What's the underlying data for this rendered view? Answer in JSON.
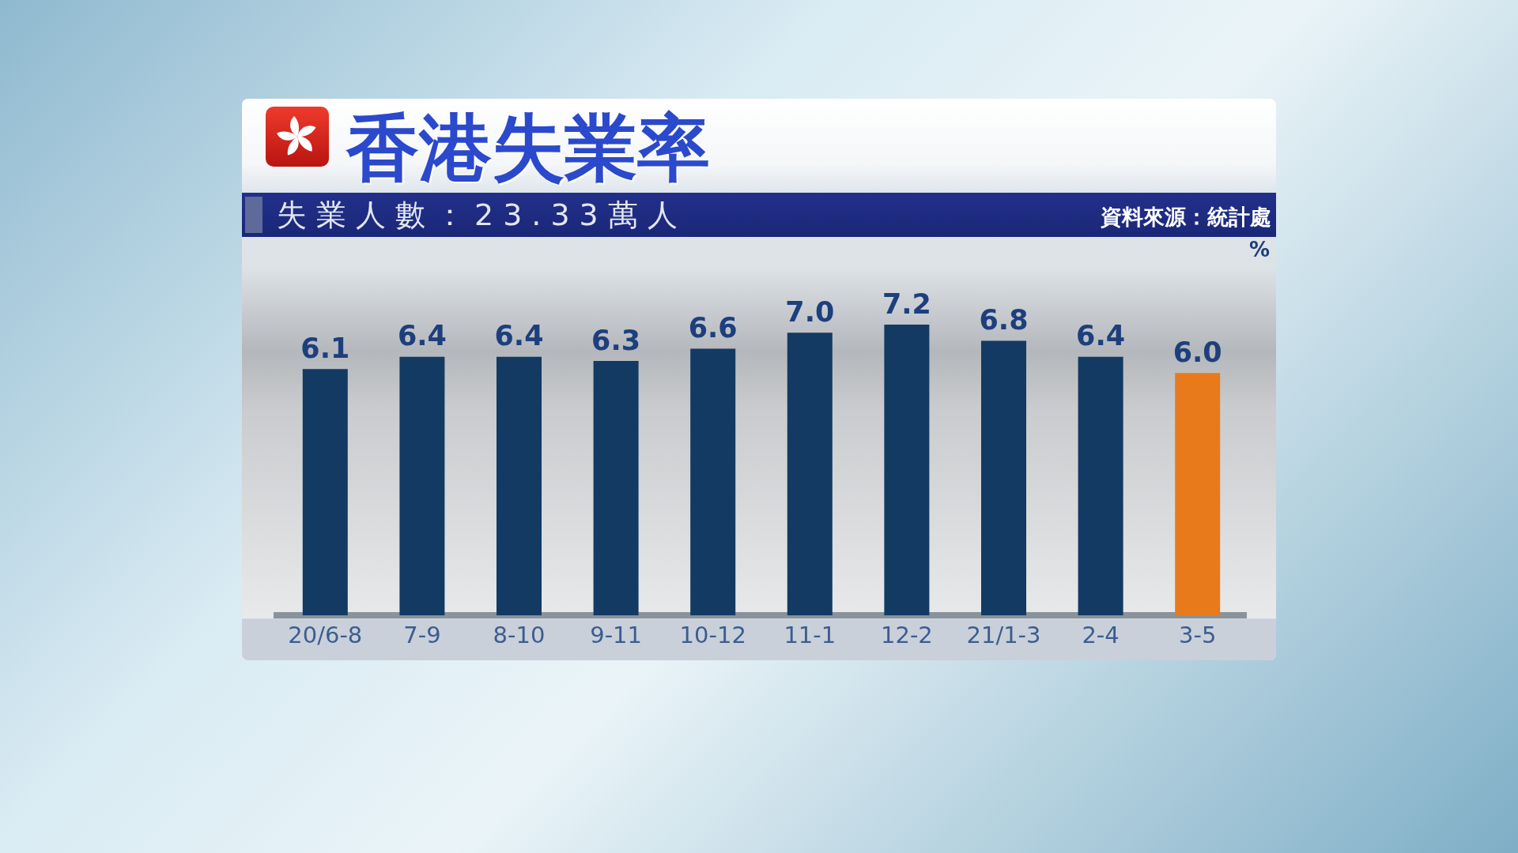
{
  "chart_data": {
    "type": "bar",
    "title": "香港失業率",
    "subtitle": "失業人數：23.33萬人",
    "ylabel": "%",
    "annotations": [
      "資料來源：統計處"
    ],
    "categories": [
      "20/6-8",
      "7-9",
      "8-10",
      "9-11",
      "10-12",
      "11-1",
      "12-2",
      "21/1-3",
      "2-4",
      "3-5"
    ],
    "values": [
      6.1,
      6.4,
      6.4,
      6.3,
      6.6,
      7.0,
      7.2,
      6.8,
      6.4,
      6.0
    ],
    "colors": [
      "#123a63",
      "#123a63",
      "#123a63",
      "#123a63",
      "#123a63",
      "#123a63",
      "#123a63",
      "#123a63",
      "#123a63",
      "#e87a1c"
    ],
    "value_labels": [
      "6.1",
      "6.4",
      "6.4",
      "6.3",
      "6.6",
      "7.0",
      "7.2",
      "6.8",
      "6.4",
      "6.0"
    ],
    "tick_labels": "x"
  }
}
